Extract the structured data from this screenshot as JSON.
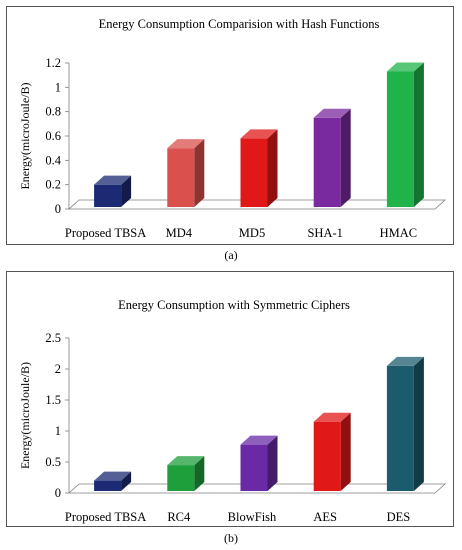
{
  "chart_data": [
    {
      "type": "bar",
      "title": "Energy Consumption Comparision with Hash Functions",
      "ylabel": "Energy(microJoule/B)",
      "xlabel": "",
      "categories": [
        "Proposed TBSA",
        "MD4",
        "MD5",
        "SHA-1",
        "HMAC"
      ],
      "values": [
        0.2,
        0.5,
        0.58,
        0.75,
        1.13
      ],
      "yticks": [
        "0",
        "0.2",
        "0.4",
        "0.6",
        "0.8",
        "1",
        "1.2"
      ],
      "ylim": [
        0,
        1.2
      ],
      "colors": [
        "#1b2a72",
        "#d9504c",
        "#e01818",
        "#7a2a9e",
        "#1fb34a"
      ],
      "style": "3d-bar",
      "grid": false,
      "caption": "(a)"
    },
    {
      "type": "bar",
      "title": "Energy Consumption with Symmetric Ciphers",
      "ylabel": "Energy(microJoule/B)",
      "xlabel": "",
      "categories": [
        "Proposed TBSA",
        "RC4",
        "BlowFish",
        "AES",
        "DES"
      ],
      "values": [
        0.2,
        0.45,
        0.78,
        1.15,
        2.05
      ],
      "yticks": [
        "0",
        "0.5",
        "1",
        "1.5",
        "2",
        "2.5"
      ],
      "ylim": [
        0,
        2.5
      ],
      "colors": [
        "#1b2a72",
        "#1f9e3c",
        "#6a2aa6",
        "#e01818",
        "#1c5b6e"
      ],
      "style": "3d-bar",
      "grid": false,
      "caption": "(b)"
    }
  ]
}
